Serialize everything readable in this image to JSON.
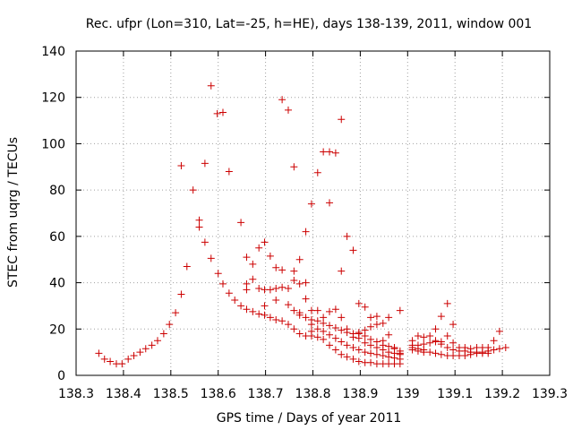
{
  "chart_data": {
    "type": "scatter",
    "title": "Rec. ufpr (Lon=310, Lat=-25, h=HE), days 138-139, 2011, window 001",
    "xlabel": "GPS time / Days of year 2011",
    "ylabel": "STEC from uqrg / TECUs",
    "xlim": [
      138.3,
      139.3
    ],
    "ylim": [
      0,
      140
    ],
    "xticks": [
      "138.3",
      "138.4",
      "138.5",
      "138.6",
      "138.7",
      "138.8",
      "138.9",
      "139",
      "139.1",
      "139.2",
      "139.3"
    ],
    "yticks": [
      "0",
      "20",
      "40",
      "60",
      "80",
      "100",
      "120",
      "140"
    ],
    "grid": true,
    "marker": "+",
    "color": "#cc0000",
    "series": [
      {
        "name": "STEC",
        "points": [
          [
            138.348,
            9.5
          ],
          [
            138.36,
            7
          ],
          [
            138.372,
            6
          ],
          [
            138.385,
            5
          ],
          [
            138.397,
            5
          ],
          [
            138.41,
            7
          ],
          [
            138.422,
            8.5
          ],
          [
            138.435,
            10
          ],
          [
            138.447,
            11.5
          ],
          [
            138.46,
            13
          ],
          [
            138.472,
            15
          ],
          [
            138.485,
            18
          ],
          [
            138.497,
            22
          ],
          [
            138.51,
            27
          ],
          [
            138.522,
            35
          ],
          [
            138.534,
            47
          ],
          [
            138.547,
            80
          ],
          [
            138.56,
            67
          ],
          [
            138.56,
            64
          ],
          [
            138.572,
            57.5
          ],
          [
            138.522,
            90.5
          ],
          [
            138.572,
            91.5
          ],
          [
            138.585,
            50.5
          ],
          [
            138.585,
            125
          ],
          [
            138.598,
            113
          ],
          [
            138.61,
            113.5
          ],
          [
            138.623,
            88
          ],
          [
            138.6,
            44
          ],
          [
            138.61,
            39.5
          ],
          [
            138.623,
            35.5
          ],
          [
            138.635,
            32.5
          ],
          [
            138.648,
            30
          ],
          [
            138.66,
            28.5
          ],
          [
            138.673,
            27.5
          ],
          [
            138.686,
            26.5
          ],
          [
            138.698,
            26
          ],
          [
            138.71,
            25
          ],
          [
            138.722,
            24
          ],
          [
            138.735,
            23.5
          ],
          [
            138.748,
            22
          ],
          [
            138.76,
            20
          ],
          [
            138.772,
            18
          ],
          [
            138.785,
            17
          ],
          [
            138.797,
            17
          ],
          [
            138.81,
            16.5
          ],
          [
            138.822,
            15.5
          ],
          [
            138.835,
            13
          ],
          [
            138.848,
            11
          ],
          [
            138.86,
            9
          ],
          [
            138.872,
            8
          ],
          [
            138.885,
            7
          ],
          [
            138.897,
            6
          ],
          [
            138.91,
            5.5
          ],
          [
            138.922,
            5.5
          ],
          [
            138.935,
            5
          ],
          [
            138.948,
            5
          ],
          [
            138.96,
            5
          ],
          [
            138.972,
            5
          ],
          [
            138.984,
            5
          ],
          [
            138.648,
            66
          ],
          [
            138.66,
            51
          ],
          [
            138.673,
            48
          ],
          [
            138.686,
            55
          ],
          [
            138.698,
            57.5
          ],
          [
            138.71,
            51.5
          ],
          [
            138.722,
            46.5
          ],
          [
            138.735,
            119
          ],
          [
            138.748,
            114.5
          ],
          [
            138.76,
            90
          ],
          [
            138.772,
            50
          ],
          [
            138.785,
            62
          ],
          [
            138.797,
            74
          ],
          [
            138.81,
            87.5
          ],
          [
            138.822,
            96.5
          ],
          [
            138.835,
            96.5
          ],
          [
            138.848,
            96
          ],
          [
            138.86,
            110.5
          ],
          [
            138.835,
            74.5
          ],
          [
            138.872,
            60
          ],
          [
            138.885,
            54
          ],
          [
            138.86,
            45
          ],
          [
            138.66,
            39.5
          ],
          [
            138.673,
            41.5
          ],
          [
            138.686,
            37.5
          ],
          [
            138.698,
            37
          ],
          [
            138.71,
            37
          ],
          [
            138.722,
            37.5
          ],
          [
            138.735,
            38
          ],
          [
            138.748,
            37.5
          ],
          [
            138.76,
            41
          ],
          [
            138.772,
            27
          ],
          [
            138.785,
            40
          ],
          [
            138.797,
            22
          ],
          [
            138.66,
            37
          ],
          [
            138.698,
            30
          ],
          [
            138.722,
            32.5
          ],
          [
            138.735,
            45.5
          ],
          [
            138.76,
            45
          ],
          [
            138.772,
            39.5
          ],
          [
            138.785,
            33
          ],
          [
            138.797,
            28
          ],
          [
            138.81,
            28
          ],
          [
            138.822,
            25
          ],
          [
            138.835,
            27.5
          ],
          [
            138.848,
            28.5
          ],
          [
            138.86,
            25
          ],
          [
            138.872,
            20
          ],
          [
            138.885,
            18
          ],
          [
            138.897,
            16
          ],
          [
            138.91,
            14
          ],
          [
            138.922,
            13
          ],
          [
            138.935,
            12
          ],
          [
            138.948,
            11
          ],
          [
            138.96,
            10
          ],
          [
            138.972,
            9.5
          ],
          [
            138.984,
            9
          ],
          [
            138.748,
            30.5
          ],
          [
            138.76,
            28
          ],
          [
            138.772,
            26
          ],
          [
            138.785,
            25
          ],
          [
            138.797,
            24
          ],
          [
            138.81,
            23.5
          ],
          [
            138.822,
            22.5
          ],
          [
            138.835,
            21.5
          ],
          [
            138.848,
            20.5
          ],
          [
            138.86,
            19.5
          ],
          [
            138.872,
            18.5
          ],
          [
            138.885,
            18
          ],
          [
            138.897,
            18.5
          ],
          [
            138.91,
            19.5
          ],
          [
            138.922,
            21
          ],
          [
            138.935,
            22
          ],
          [
            138.948,
            22.5
          ],
          [
            138.96,
            25
          ],
          [
            138.984,
            28
          ],
          [
            138.797,
            19
          ],
          [
            138.81,
            20
          ],
          [
            138.822,
            19
          ],
          [
            138.835,
            17.5
          ],
          [
            138.848,
            16
          ],
          [
            138.86,
            14.5
          ],
          [
            138.872,
            13
          ],
          [
            138.885,
            12
          ],
          [
            138.897,
            11
          ],
          [
            138.91,
            10
          ],
          [
            138.922,
            9.5
          ],
          [
            138.935,
            9
          ],
          [
            138.948,
            8.5
          ],
          [
            138.96,
            8
          ],
          [
            138.972,
            7.5
          ],
          [
            138.984,
            7
          ],
          [
            138.897,
            31
          ],
          [
            138.91,
            29.5
          ],
          [
            138.922,
            25
          ],
          [
            138.935,
            25.5
          ],
          [
            138.948,
            15
          ],
          [
            138.96,
            17.5
          ],
          [
            138.972,
            12
          ],
          [
            138.984,
            10.5
          ],
          [
            138.885,
            16.5
          ],
          [
            138.897,
            18
          ],
          [
            138.91,
            17
          ],
          [
            138.922,
            15.5
          ],
          [
            138.935,
            14.5
          ],
          [
            138.948,
            13
          ],
          [
            138.96,
            12.5
          ],
          [
            138.972,
            11.5
          ],
          [
            138.984,
            9.5
          ],
          [
            139.01,
            15
          ],
          [
            139.022,
            17
          ],
          [
            139.034,
            16.5
          ],
          [
            139.047,
            17
          ],
          [
            139.059,
            14.5
          ],
          [
            139.071,
            13.5
          ],
          [
            139.084,
            31
          ],
          [
            139.096,
            22
          ],
          [
            139.071,
            25.5
          ],
          [
            139.059,
            20
          ],
          [
            139.084,
            17
          ],
          [
            139.01,
            12
          ],
          [
            139.022,
            11.5
          ],
          [
            139.034,
            11
          ],
          [
            139.047,
            10
          ],
          [
            139.059,
            9.5
          ],
          [
            139.071,
            9
          ],
          [
            139.084,
            8.5
          ],
          [
            139.096,
            8.5
          ],
          [
            139.109,
            8.5
          ],
          [
            139.121,
            8.5
          ],
          [
            139.133,
            9
          ],
          [
            139.146,
            9.5
          ],
          [
            139.158,
            10
          ],
          [
            139.17,
            10.5
          ],
          [
            139.182,
            11
          ],
          [
            139.194,
            11.5
          ],
          [
            139.207,
            12
          ],
          [
            139.182,
            15
          ],
          [
            139.194,
            19
          ],
          [
            139.01,
            13
          ],
          [
            139.022,
            13
          ],
          [
            139.034,
            13.5
          ],
          [
            139.047,
            14
          ],
          [
            139.059,
            15
          ],
          [
            139.071,
            14.5
          ],
          [
            139.084,
            12
          ],
          [
            139.096,
            11
          ],
          [
            139.109,
            10.5
          ],
          [
            139.121,
            10.5
          ],
          [
            139.133,
            10
          ],
          [
            139.146,
            10
          ],
          [
            139.158,
            9.5
          ],
          [
            139.17,
            9.5
          ],
          [
            139.096,
            14
          ],
          [
            139.109,
            12
          ],
          [
            139.121,
            12
          ],
          [
            139.133,
            11.5
          ],
          [
            139.146,
            12
          ],
          [
            139.158,
            12
          ],
          [
            139.17,
            12
          ],
          [
            139.01,
            11
          ],
          [
            139.022,
            10.5
          ],
          [
            139.034,
            10
          ]
        ]
      }
    ]
  }
}
